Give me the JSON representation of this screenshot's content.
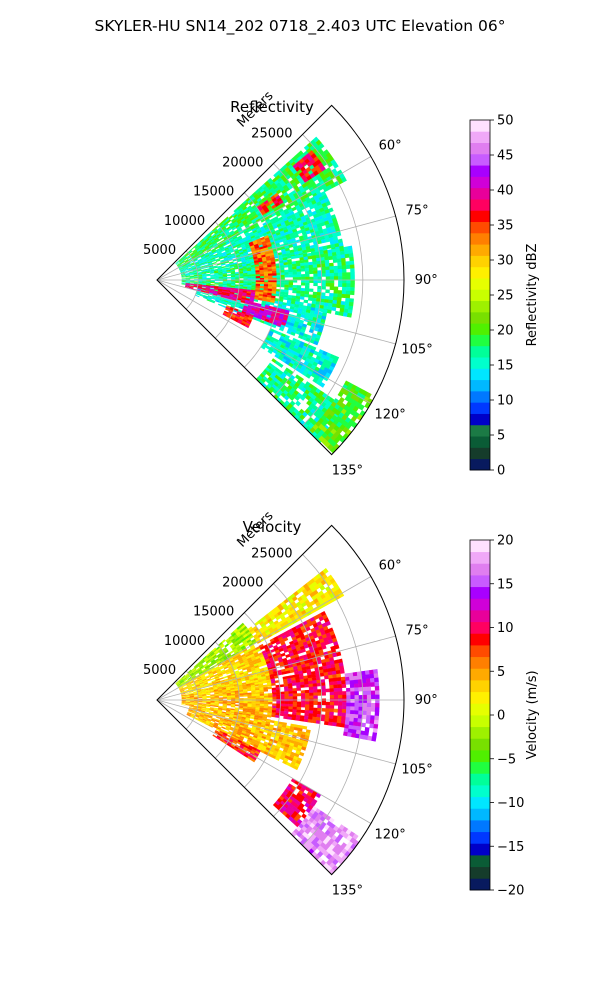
{
  "figure": {
    "suptitle": "SKYLER-HU  SN14_202  0718_2.403 UTC Elevation 06°"
  },
  "chart_data": [
    {
      "type": "polar-heatmap",
      "title": "Reflectivity",
      "radial_axis_label": "Meters",
      "radial_ticks": [
        5000,
        10000,
        15000,
        20000,
        25000
      ],
      "radial_range": [
        0,
        30000
      ],
      "azimuth_ticks": [
        "60°",
        "75°",
        "90°",
        "105°",
        "120°",
        "135°"
      ],
      "azimuth_range_deg": [
        45,
        135
      ],
      "grid": true,
      "colorbar": {
        "label": "Reflectivity dBZ",
        "range": [
          0,
          50
        ],
        "ticks": [
          "0",
          "5",
          "10",
          "15",
          "20",
          "25",
          "30",
          "35",
          "40",
          "45",
          "50"
        ],
        "colors": [
          "#081a5e",
          "#153c2b",
          "#0a5c36",
          "#1b7a45",
          "#0000c8",
          "#0038ff",
          "#0078ff",
          "#00b8ff",
          "#00e6ff",
          "#00ffcc",
          "#00ff99",
          "#20ff40",
          "#50f000",
          "#78e000",
          "#9ef000",
          "#c8ff00",
          "#e6ff00",
          "#fff000",
          "#ffd200",
          "#ffaa00",
          "#ff7f00",
          "#ff4b00",
          "#ff0000",
          "#ff0060",
          "#e8009a",
          "#d000d8",
          "#a800ff",
          "#c85cff",
          "#e07ef0",
          "#f0a8f8",
          "#ffe0ff"
        ]
      },
      "echoes": [
        {
          "az": [
            48,
            62
          ],
          "r": [
            3000,
            26000
          ],
          "dbz": 18
        },
        {
          "az": [
            62,
            80
          ],
          "r": [
            3000,
            23000
          ],
          "dbz": 16
        },
        {
          "az": [
            80,
            100
          ],
          "r": [
            3000,
            24000
          ],
          "dbz": 17
        },
        {
          "az": [
            100,
            112
          ],
          "r": [
            5000,
            21000
          ],
          "dbz": 15
        },
        {
          "az": [
            113,
            122
          ],
          "r": [
            15000,
            24000
          ],
          "dbz": 15
        },
        {
          "az": [
            124,
            135
          ],
          "r": [
            17000,
            28000
          ],
          "dbz": 17
        },
        {
          "az": [
            118,
            134
          ],
          "r": [
            26000,
            30000
          ],
          "dbz": 20
        },
        {
          "az": [
            50,
            56
          ],
          "r": [
            21500,
            24500
          ],
          "dbz": 37
        },
        {
          "az": [
            54,
            58
          ],
          "r": [
            15000,
            18000
          ],
          "dbz": 36
        },
        {
          "az": [
            68,
            100
          ],
          "r": [
            12000,
            14500
          ],
          "dbz": 34
        },
        {
          "az": [
            96,
            104
          ],
          "r": [
            3500,
            12000
          ],
          "dbz": 38
        },
        {
          "az": [
            103,
            110
          ],
          "r": [
            11000,
            16500
          ],
          "dbz": 40
        },
        {
          "az": [
            110,
            117
          ],
          "r": [
            9000,
            12500
          ],
          "dbz": 36
        }
      ]
    },
    {
      "type": "polar-heatmap",
      "title": "Velocity",
      "radial_axis_label": "Meters",
      "radial_ticks": [
        5000,
        10000,
        15000,
        20000,
        25000
      ],
      "radial_range": [
        0,
        30000
      ],
      "azimuth_ticks": [
        "60°",
        "75°",
        "90°",
        "105°",
        "120°",
        "135°"
      ],
      "azimuth_range_deg": [
        45,
        135
      ],
      "grid": true,
      "colorbar": {
        "label": "Velocity (m/s)",
        "range": [
          -20,
          20
        ],
        "ticks": [
          "−20",
          "−15",
          "−10",
          "−5",
          "0",
          "5",
          "10",
          "15",
          "20"
        ],
        "colors": [
          "#081a5e",
          "#153c2b",
          "#0a5c36",
          "#0000c8",
          "#0038ff",
          "#0078ff",
          "#00b8ff",
          "#00e6ff",
          "#00ffcc",
          "#00ff99",
          "#20ff40",
          "#50f000",
          "#78e000",
          "#9ef000",
          "#c8ff00",
          "#e6ff00",
          "#fff000",
          "#ffd200",
          "#ffaa00",
          "#ff7f00",
          "#ff4b00",
          "#ff0000",
          "#ff0060",
          "#e8009a",
          "#d000d8",
          "#a800ff",
          "#c85cff",
          "#e07ef0",
          "#f0a8f8",
          "#ffe0ff"
        ]
      },
      "echoes": [
        {
          "az": [
            48,
            60
          ],
          "r": [
            3000,
            14000
          ],
          "velocity": -2
        },
        {
          "az": [
            52,
            60
          ],
          "r": [
            14000,
            26000
          ],
          "velocity": 2
        },
        {
          "az": [
            60,
            82
          ],
          "r": [
            3000,
            14000
          ],
          "velocity": 3
        },
        {
          "az": [
            62,
            98
          ],
          "r": [
            14000,
            23000
          ],
          "velocity": 9
        },
        {
          "az": [
            80,
            100
          ],
          "r": [
            3000,
            14000
          ],
          "velocity": 4
        },
        {
          "az": [
            82,
            100
          ],
          "r": [
            23000,
            27000
          ],
          "velocity": 15
        },
        {
          "az": [
            100,
            116
          ],
          "r": [
            4000,
            19000
          ],
          "velocity": 4
        },
        {
          "az": [
            116,
            122
          ],
          "r": [
            8000,
            14000
          ],
          "velocity": 8
        },
        {
          "az": [
            120,
            132
          ],
          "r": [
            19000,
            23000
          ],
          "velocity": 10
        },
        {
          "az": [
            124,
            136
          ],
          "r": [
            23000,
            30000
          ],
          "velocity": 17
        }
      ]
    }
  ]
}
